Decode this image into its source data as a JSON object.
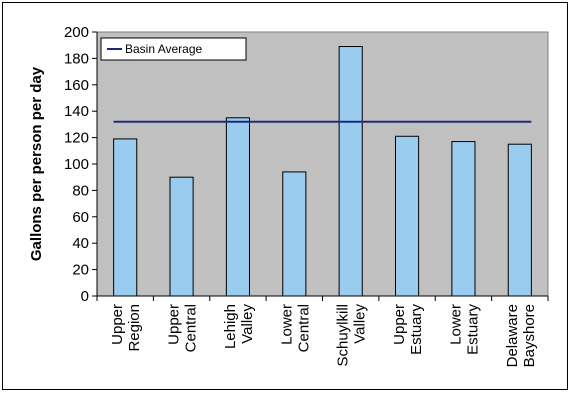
{
  "chart_data": {
    "type": "bar",
    "categories": [
      [
        "Upper",
        "Region"
      ],
      [
        "Upper",
        "Central"
      ],
      [
        "Lehigh",
        "Valley"
      ],
      [
        "Lower",
        "Central"
      ],
      [
        "Schuylkill",
        "Valley"
      ],
      [
        "Upper",
        "Estuary"
      ],
      [
        "Lower",
        "Estuary"
      ],
      [
        "Delaware",
        "Bayshore"
      ]
    ],
    "values": [
      119,
      90,
      135,
      94,
      189,
      121,
      117,
      115
    ],
    "reference_line": {
      "name": "Basin Average",
      "value": 132
    },
    "ylabel": "Gallons per person per day",
    "ylim": [
      0,
      200
    ],
    "ytick_step": 20,
    "yticks": [
      "0",
      "20",
      "40",
      "60",
      "80",
      "100",
      "120",
      "140",
      "160",
      "180",
      "200"
    ],
    "legend_position": "top-left",
    "plot_background": "#c0c0c0",
    "bar_color": "#99ccee",
    "line_color": "#1f2a7a",
    "grid": false
  }
}
